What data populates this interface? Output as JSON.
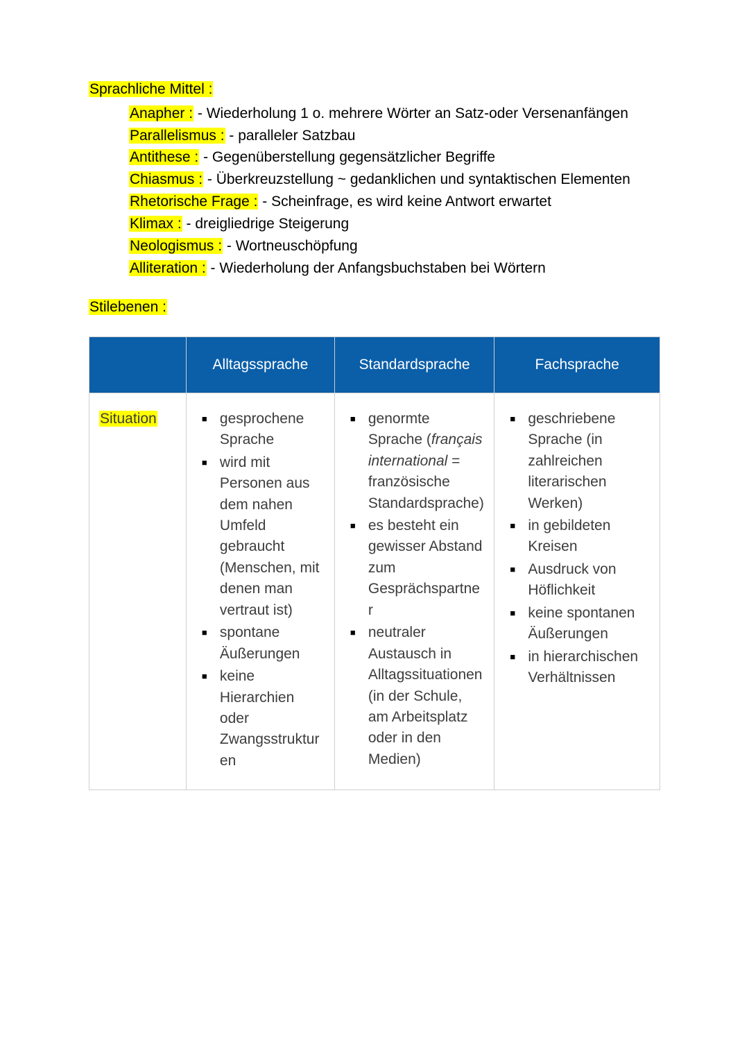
{
  "colors": {
    "highlight": "#ffff00",
    "table_header_bg": "#0b5ea8",
    "table_header_text": "#ffffff",
    "table_border": "#cfcfcf",
    "body_text": "#000000",
    "cell_text": "#3c3c3c",
    "page_bg": "#ffffff"
  },
  "typography": {
    "font_family": "Arial",
    "body_fontsize_pt": 16,
    "line_height": 1.5
  },
  "heading": "Sprachliche Mittel :",
  "definitions": [
    {
      "term": "Anapher :",
      "desc": " - Wiederholung 1 o. mehrere Wörter an Satz-oder Versenanfängen"
    },
    {
      "term": "Parallelismus :",
      "desc": " - paralleler Satzbau"
    },
    {
      "term": "Antithese :",
      "desc": " - Gegenüberstellung gegensätzlicher Begriffe"
    },
    {
      "term": "Chiasmus :",
      "desc": " - Überkreuzstellung ~ gedanklichen und syntaktischen Elementen"
    },
    {
      "term": "Rhetorische Frage :",
      "desc": " - Scheinfrage, es wird keine Antwort erwartet"
    },
    {
      "term": "Klimax :",
      "desc": " - dreigliedrige Steigerung"
    },
    {
      "term": "Neologismus :",
      "desc": " - Wortneuschöpfung"
    },
    {
      "term": "Alliteration :",
      "desc": " - Wiederholung der Anfangsbuchstaben bei Wörtern"
    }
  ],
  "stilebenen_label": "Stilebenen :",
  "table": {
    "columns": [
      "",
      "Alltagssprache",
      "Standardsprache",
      "Fachsprache"
    ],
    "row_label": "Situation",
    "col_alltag": {
      "items": [
        "gesprochene Sprache",
        "wird mit Personen aus dem nahen Umfeld gebraucht (Menschen, mit denen man vertraut ist)",
        "spontane Äußerungen",
        "keine Hierarchien oder Zwangsstrukturen"
      ]
    },
    "col_standard": {
      "item1_pre": "genormte Sprache (",
      "item1_italic": "français international",
      "item1_post": " = französische Standardsprache)",
      "items_rest": [
        "es besteht ein gewisser Abstand zum Gesprächspartner",
        "neutraler Austausch in Alltagssituationen (in der Schule, am Arbeitsplatz oder in den Medien)"
      ]
    },
    "col_fach": {
      "items": [
        "geschriebene Sprache (in zahlreichen literarischen Werken)",
        "in gebildeten Kreisen",
        "Ausdruck von Höflichkeit",
        "keine spontanen Äußerungen",
        "in hierarchischen Verhältnissen"
      ]
    }
  }
}
